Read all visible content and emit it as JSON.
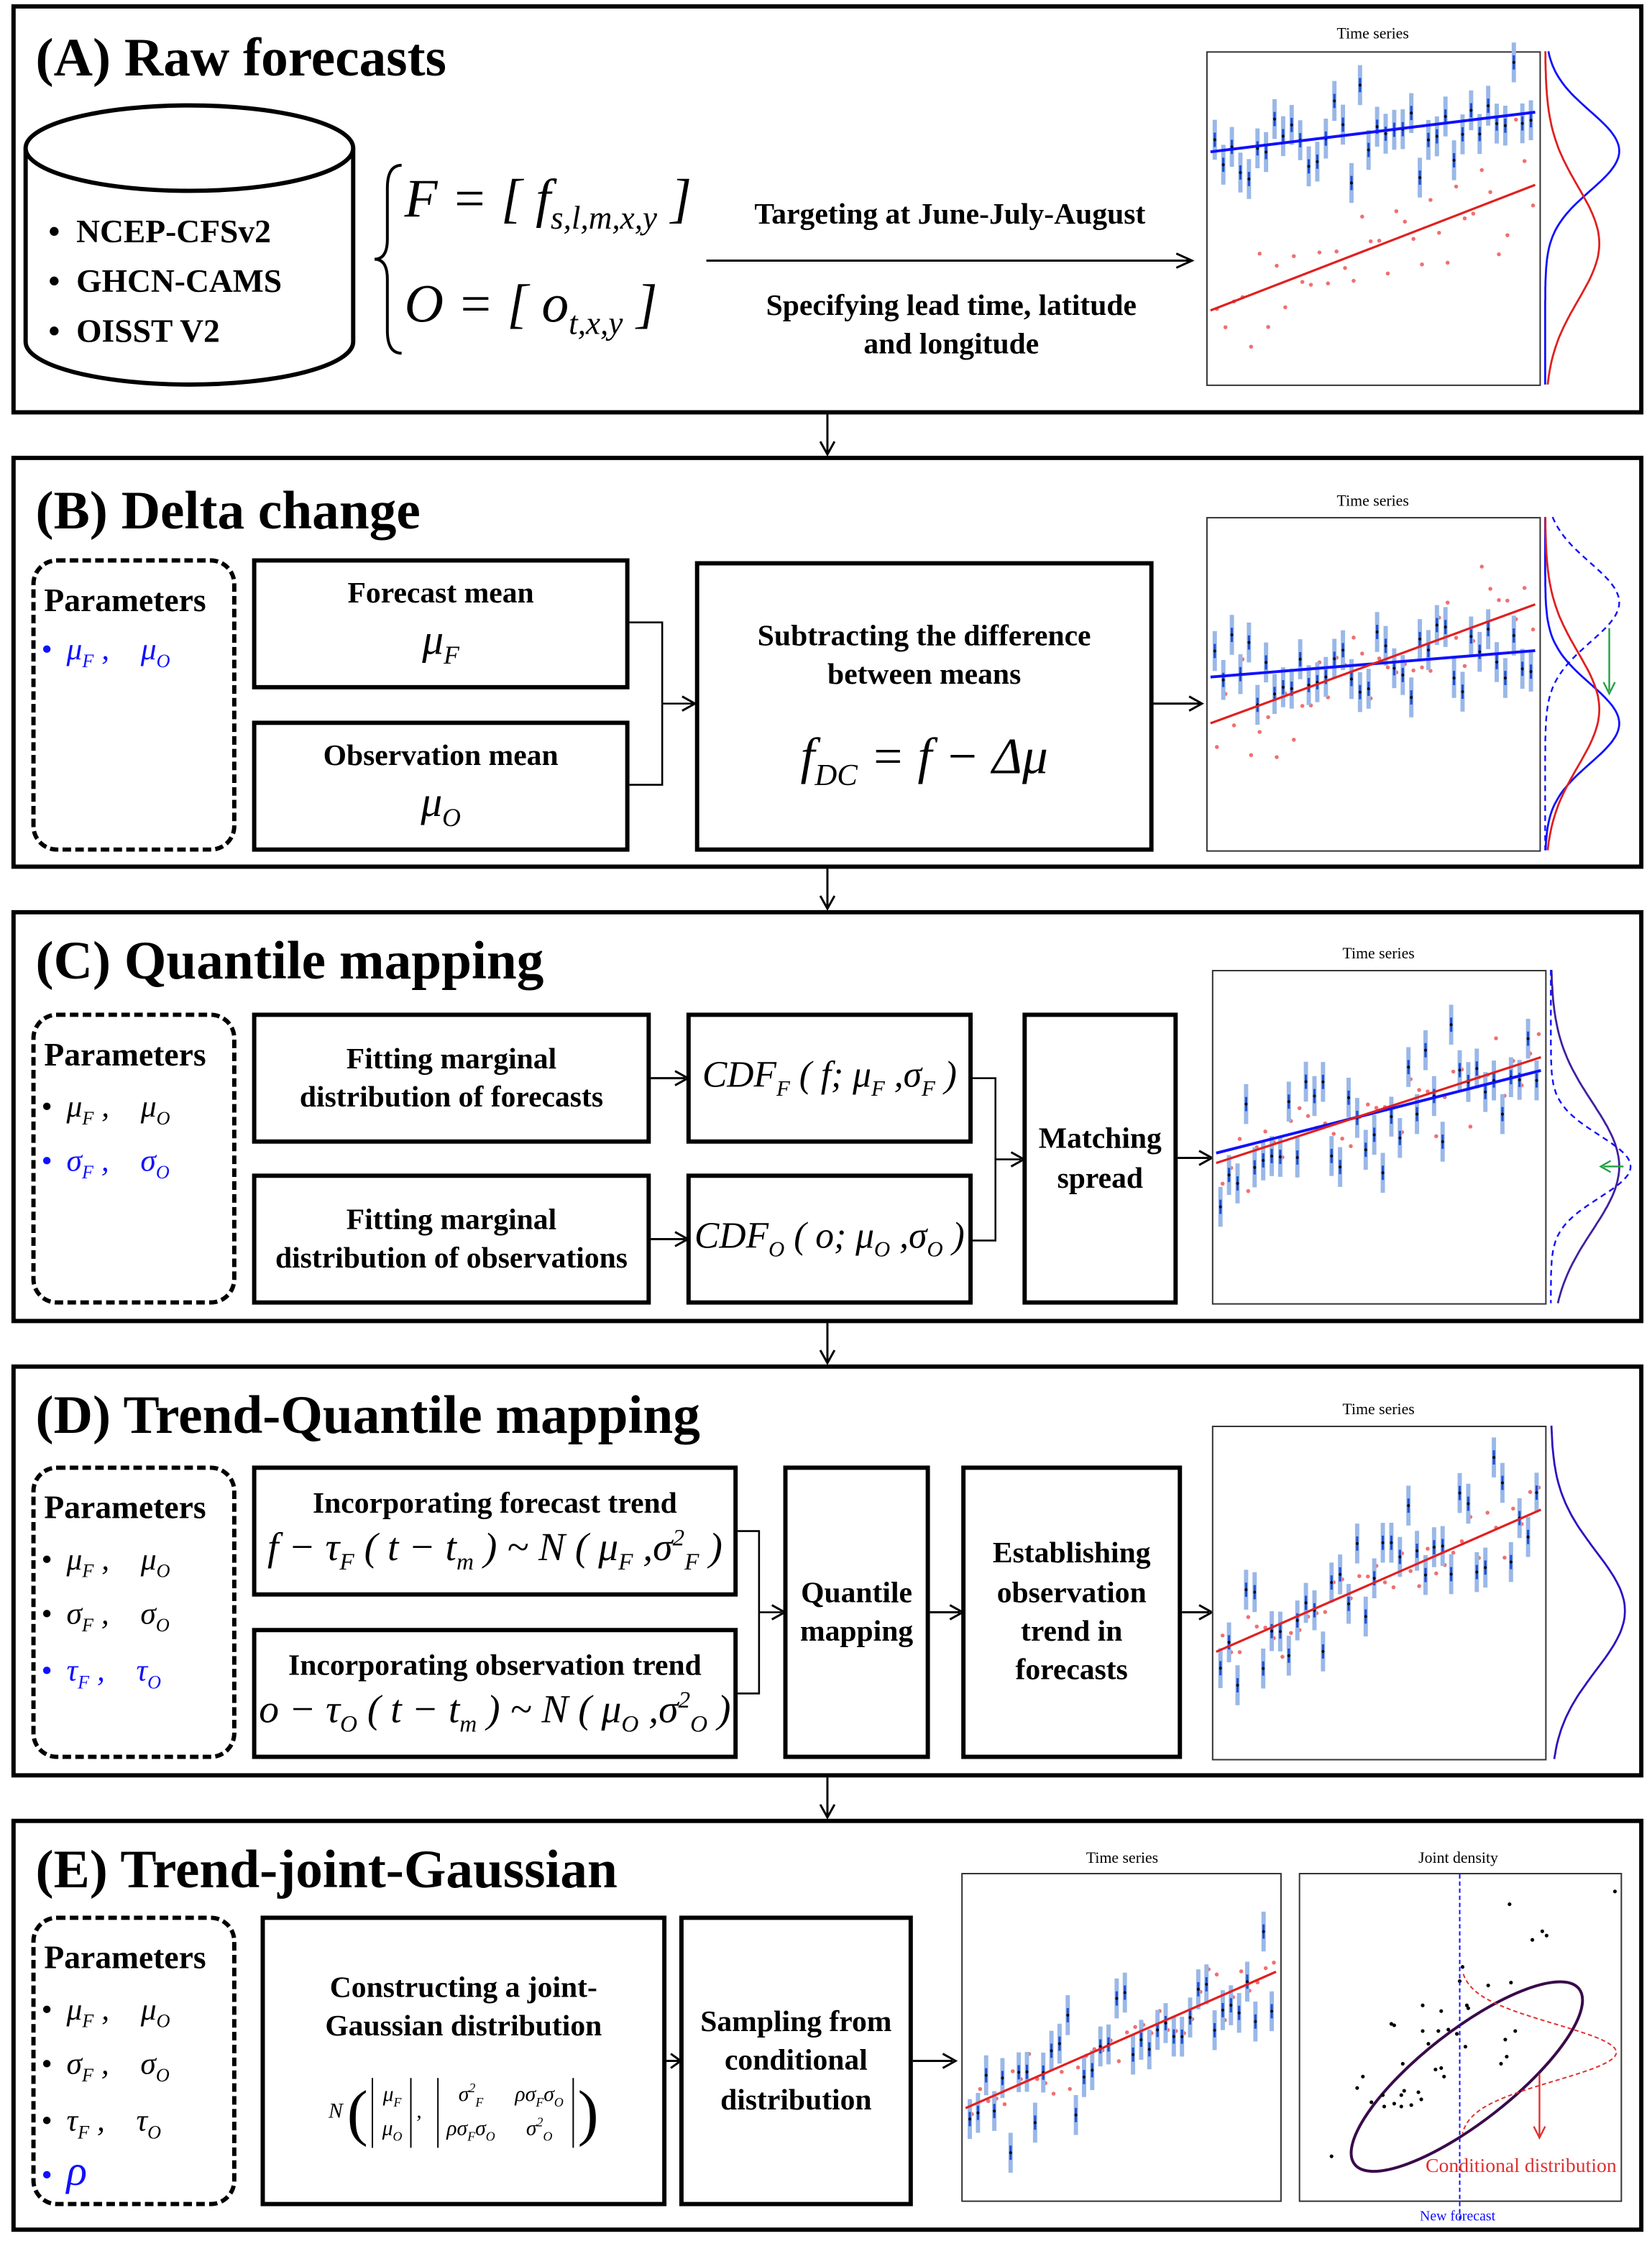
{
  "colors": {
    "forecast": "#1010ff",
    "observation": "#e02020",
    "ellipse": "#3a0a4a",
    "text": "#000000"
  },
  "panel_a": {
    "title": "(A) Raw forecasts",
    "datasets": [
      "NCEP-CFSv2",
      "GHCN-CAMS",
      "OISST V2"
    ],
    "formula_f": "F = [ f",
    "formula_f_sub": "s,l,m,x,y",
    "formula_o": "O = [ o",
    "formula_o_sub": "t,x,y",
    "arrow_top": "Targeting at June-July-August",
    "arrow_bottom_1": "Specifying lead time, latitude",
    "arrow_bottom_2": "and longitude",
    "plot_title": "Time series"
  },
  "panel_b": {
    "title": "(B) Delta change",
    "params_label": "Parameters",
    "forecast_mean": "Forecast mean",
    "observation_mean": "Observation mean",
    "subtract_1": "Subtracting the difference",
    "subtract_2": "between means",
    "plot_title": "Time series"
  },
  "panel_c": {
    "title": "(C) Quantile mapping",
    "params_label": "Parameters",
    "fit_forecast_1": "Fitting marginal",
    "fit_forecast_2": "distribution of forecasts",
    "fit_obs_1": "Fitting marginal",
    "fit_obs_2": "distribution of observations",
    "matching_1": "Matching",
    "matching_2": "spread",
    "plot_title": "Time series"
  },
  "panel_d": {
    "title": "(D) Trend-Quantile mapping",
    "params_label": "Parameters",
    "inc_forecast": "Incorporating forecast trend",
    "inc_obs": "Incorporating observation trend",
    "qm_1": "Quantile",
    "qm_2": "mapping",
    "est_1": "Establishing",
    "est_2": "observation",
    "est_3": "trend in",
    "est_4": "forecasts",
    "plot_title": "Time series"
  },
  "panel_e": {
    "title": "(E) Trend-joint-Gaussian",
    "params_label": "Parameters",
    "construct_1": "Constructing a joint-",
    "construct_2": "Gaussian distribution",
    "sampling_1": "Sampling from",
    "sampling_2": "conditional",
    "sampling_3": "distribution",
    "plot_title": "Time series",
    "joint_title": "Joint density",
    "conditional_label": "Conditional distribution",
    "new_forecast_label": "New forecast"
  }
}
